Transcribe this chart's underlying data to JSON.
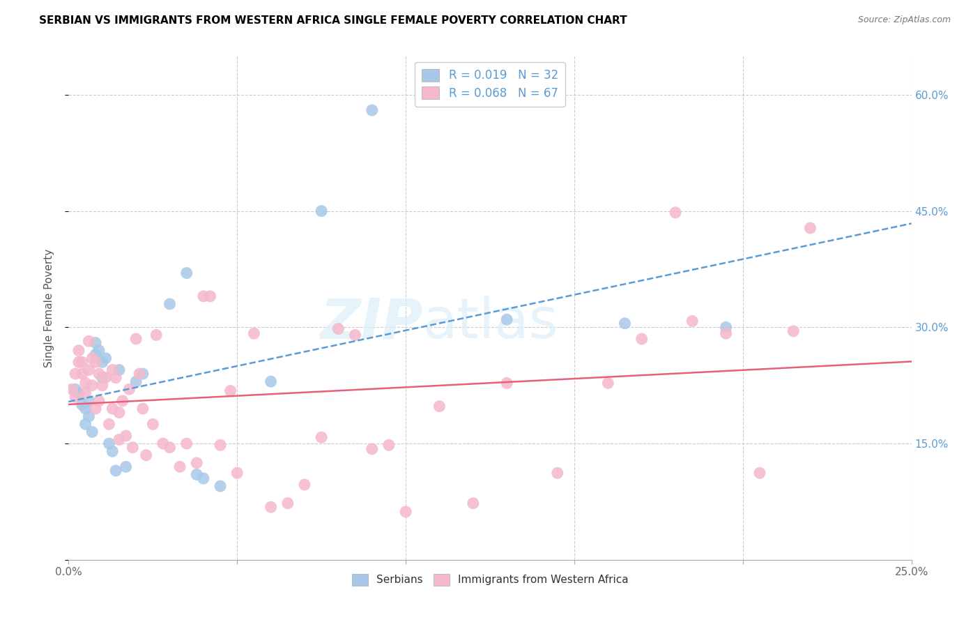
{
  "title": "SERBIAN VS IMMIGRANTS FROM WESTERN AFRICA SINGLE FEMALE POVERTY CORRELATION CHART",
  "source": "Source: ZipAtlas.com",
  "ylabel": "Single Female Poverty",
  "xlim": [
    0.0,
    0.25
  ],
  "ylim": [
    0.0,
    0.65
  ],
  "xticks": [
    0.0,
    0.05,
    0.1,
    0.15,
    0.2,
    0.25
  ],
  "yticks": [
    0.0,
    0.15,
    0.3,
    0.45,
    0.6
  ],
  "xticklabels": [
    "0.0%",
    "",
    "",
    "",
    "",
    "25.0%"
  ],
  "yticklabels_right": [
    "",
    "15.0%",
    "30.0%",
    "45.0%",
    "60.0%"
  ],
  "legend_labels": [
    "Serbians",
    "Immigrants from Western Africa"
  ],
  "series1_color": "#a8c8e8",
  "series2_color": "#f5b8cc",
  "trendline1_color": "#5b9bd5",
  "trendline2_color": "#e8607a",
  "R1": 0.019,
  "N1": 32,
  "R2": 0.068,
  "N2": 67,
  "series1_x": [
    0.002,
    0.003,
    0.004,
    0.005,
    0.005,
    0.006,
    0.006,
    0.007,
    0.008,
    0.008,
    0.009,
    0.01,
    0.01,
    0.011,
    0.012,
    0.013,
    0.014,
    0.015,
    0.017,
    0.02,
    0.022,
    0.03,
    0.035,
    0.038,
    0.04,
    0.045,
    0.06,
    0.075,
    0.09,
    0.13,
    0.165,
    0.195
  ],
  "series1_y": [
    0.22,
    0.215,
    0.2,
    0.195,
    0.175,
    0.205,
    0.185,
    0.165,
    0.28,
    0.265,
    0.27,
    0.255,
    0.235,
    0.26,
    0.15,
    0.14,
    0.115,
    0.245,
    0.12,
    0.23,
    0.24,
    0.33,
    0.37,
    0.11,
    0.105,
    0.095,
    0.23,
    0.45,
    0.58,
    0.31,
    0.305,
    0.3
  ],
  "series2_x": [
    0.001,
    0.002,
    0.002,
    0.003,
    0.003,
    0.004,
    0.004,
    0.005,
    0.005,
    0.006,
    0.006,
    0.007,
    0.007,
    0.008,
    0.008,
    0.009,
    0.009,
    0.01,
    0.011,
    0.012,
    0.013,
    0.013,
    0.014,
    0.015,
    0.015,
    0.016,
    0.017,
    0.018,
    0.019,
    0.02,
    0.021,
    0.022,
    0.023,
    0.025,
    0.026,
    0.028,
    0.03,
    0.033,
    0.035,
    0.038,
    0.04,
    0.042,
    0.045,
    0.048,
    0.05,
    0.055,
    0.06,
    0.065,
    0.07,
    0.075,
    0.08,
    0.085,
    0.09,
    0.095,
    0.1,
    0.11,
    0.12,
    0.13,
    0.145,
    0.16,
    0.17,
    0.18,
    0.185,
    0.195,
    0.205,
    0.215,
    0.22
  ],
  "series2_y": [
    0.22,
    0.24,
    0.21,
    0.27,
    0.255,
    0.255,
    0.24,
    0.228,
    0.215,
    0.282,
    0.245,
    0.26,
    0.225,
    0.255,
    0.195,
    0.24,
    0.205,
    0.225,
    0.235,
    0.175,
    0.245,
    0.195,
    0.235,
    0.19,
    0.155,
    0.205,
    0.16,
    0.22,
    0.145,
    0.285,
    0.24,
    0.195,
    0.135,
    0.175,
    0.29,
    0.15,
    0.145,
    0.12,
    0.15,
    0.125,
    0.34,
    0.34,
    0.148,
    0.218,
    0.112,
    0.292,
    0.068,
    0.073,
    0.097,
    0.158,
    0.298,
    0.29,
    0.143,
    0.148,
    0.062,
    0.198,
    0.073,
    0.228,
    0.112,
    0.228,
    0.285,
    0.448,
    0.308,
    0.292,
    0.112,
    0.295,
    0.428
  ]
}
